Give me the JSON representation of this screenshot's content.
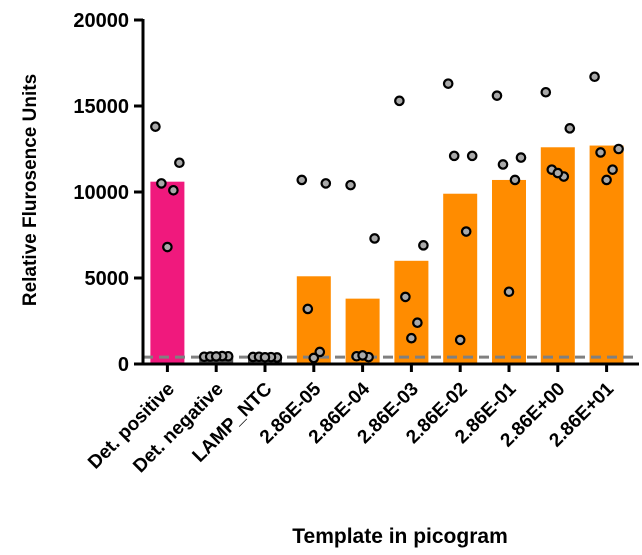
{
  "chart_data": {
    "type": "bar",
    "title": "",
    "xlabel": "Template in picogram",
    "ylabel": "Relative Flurosence Units",
    "ylim": [
      0,
      20000
    ],
    "yticks": [
      0,
      5000,
      10000,
      15000,
      20000
    ],
    "ytick_labels": [
      "0",
      "5000",
      "10000",
      "15000",
      "20000"
    ],
    "categories": [
      "Det. positive",
      "Det. negative",
      "LAMP_NTC",
      "2.86E-05",
      "2.86E-04",
      "2.86E-03",
      "2.86E-02",
      "2.86E-01",
      "2.86E+00",
      "2.86E+01"
    ],
    "values": [
      10600,
      450,
      400,
      5100,
      3800,
      6000,
      9900,
      10700,
      12600,
      12700
    ],
    "bar_colors": [
      "#f0197d",
      "#4d4d4d",
      "#4d4d4d",
      "#ff8c00",
      "#ff8c00",
      "#ff8c00",
      "#ff8c00",
      "#ff8c00",
      "#ff8c00",
      "#ff8c00"
    ],
    "points": [
      [
        13800,
        11700,
        10500,
        10100,
        6800
      ],
      [
        420,
        450,
        430,
        460,
        440
      ],
      [
        410,
        380,
        420,
        400,
        390
      ],
      [
        10700,
        10500,
        3200,
        700,
        350
      ],
      [
        10400,
        7300,
        450,
        400,
        500
      ],
      [
        15300,
        6900,
        3900,
        2400,
        1500
      ],
      [
        16300,
        12100,
        12100,
        7700,
        1400
      ],
      [
        15600,
        12000,
        11600,
        10700,
        4200
      ],
      [
        15800,
        13700,
        11300,
        10900,
        11100
      ],
      [
        16700,
        12500,
        12300,
        11300,
        10700
      ]
    ],
    "threshold": 400,
    "threshold_color": "#808080",
    "point_color": "#a9a9a9",
    "grid": false,
    "legend": "none"
  }
}
